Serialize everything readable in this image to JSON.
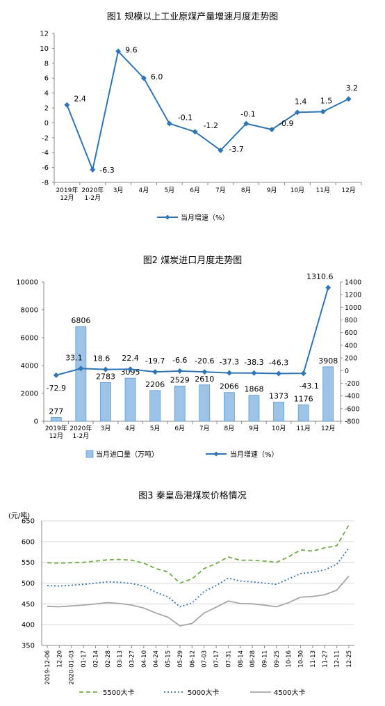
{
  "chart_data": [
    {
      "type": "line",
      "title": "图1  规模以上工业原煤产量增速月度走势图",
      "categories": [
        "2019年\n12月",
        "2020年\n1-2月",
        "3月",
        "4月",
        "5月",
        "6月",
        "7月",
        "8月",
        "9月",
        "10月",
        "11月",
        "12月"
      ],
      "series": [
        {
          "name": "当月增速（%）",
          "values": [
            2.4,
            -6.3,
            9.6,
            6.0,
            -0.1,
            -1.2,
            -3.7,
            -0.1,
            -0.9,
            1.4,
            1.5,
            3.2
          ],
          "labels": [
            "2.4",
            "-6.3",
            "9.6",
            "6.0",
            "-0.1",
            "-1.2",
            "-3.7",
            "-0.1",
            "-0.9",
            "1.4",
            "1.5",
            "3.2"
          ],
          "color": "#2e75b6"
        }
      ],
      "ylim": [
        -8,
        12
      ],
      "yticks": [
        "12",
        "10",
        "8",
        "6",
        "4",
        "2",
        "0",
        "-2",
        "-4",
        "-6",
        "-8"
      ],
      "legend_position": "bottom"
    },
    {
      "type": "bar",
      "title": "图2  煤炭进口月度走势图",
      "categories": [
        "2019年\n12月",
        "2020年\n1-2月",
        "3月",
        "4月",
        "5月",
        "6月",
        "7月",
        "8月",
        "9月",
        "10月",
        "11月",
        "12月"
      ],
      "series": [
        {
          "name": "当月进口量（万吨）",
          "type": "bar",
          "axis": "left",
          "values": [
            277,
            6806,
            2783,
            3095,
            2206,
            2529,
            2610,
            2066,
            1868,
            1373,
            1176,
            3908
          ],
          "labels": [
            "277",
            "6806",
            "2783",
            "3095",
            "2206",
            "2529",
            "2610",
            "2066",
            "1868",
            "1373",
            "1176",
            "3908"
          ],
          "color": "#9dc3e6"
        },
        {
          "name": "当月增速（%）",
          "type": "line",
          "axis": "right",
          "values": [
            -72.9,
            33.1,
            18.6,
            22.4,
            -19.7,
            -6.6,
            -20.6,
            -37.3,
            -38.3,
            -46.3,
            -43.1,
            1310.6
          ],
          "labels": [
            "-72.9",
            "33.1",
            "18.6",
            "22.4",
            "-19.7",
            "-6.6",
            "-20.6",
            "-37.3",
            "-38.3",
            "-46.3",
            "-43.1",
            "1310.6"
          ],
          "color": "#2e75b6"
        }
      ],
      "ylim": [
        0,
        10000
      ],
      "y2lim": [
        -800,
        1400
      ],
      "yticks": [
        "10000",
        "8000",
        "6000",
        "4000",
        "2000",
        "0"
      ],
      "y2ticks": [
        "1400",
        "1200",
        "1000",
        "800",
        "600",
        "400",
        "200",
        "0",
        "-200",
        "-400",
        "-600",
        "-800"
      ],
      "legend_position": "bottom"
    },
    {
      "type": "line",
      "title": "图3  秦皇岛港煤炭价格情况",
      "ylabel": "(元/吨)",
      "categories": [
        "2019-12-06",
        "12-20",
        "2020-01-03",
        "01-17",
        "02-14",
        "02-28",
        "03-13",
        "03-27",
        "04-10",
        "04-24",
        "05-15",
        "05-29",
        "06-12",
        "07-03",
        "07-17",
        "07-31",
        "08-14",
        "08-28",
        "09-11",
        "09-25",
        "10-16",
        "10-30",
        "11-13",
        "11-27",
        "12-11",
        "12-25"
      ],
      "series": [
        {
          "name": "5500大卡",
          "values": [
            549,
            548,
            549,
            550,
            553,
            556,
            557,
            555,
            548,
            535,
            527,
            500,
            510,
            535,
            547,
            563,
            555,
            555,
            553,
            550,
            563,
            580,
            577,
            585,
            590,
            640
          ],
          "color": "#70ad47",
          "style": "dashed"
        },
        {
          "name": "5000大卡",
          "values": [
            494,
            493,
            495,
            497,
            500,
            503,
            502,
            499,
            493,
            478,
            467,
            443,
            452,
            480,
            494,
            512,
            505,
            503,
            500,
            497,
            510,
            523,
            526,
            532,
            545,
            585
          ],
          "color": "#2e75b6",
          "style": "dotted"
        },
        {
          "name": "4500大卡",
          "values": [
            444,
            443,
            445,
            447,
            450,
            453,
            451,
            447,
            440,
            428,
            418,
            397,
            403,
            428,
            442,
            457,
            451,
            450,
            447,
            443,
            453,
            466,
            468,
            472,
            483,
            517
          ],
          "color": "#a6a6a6",
          "style": "solid"
        }
      ],
      "ylim": [
        350,
        650
      ],
      "yticks": [
        "650",
        "600",
        "550",
        "500",
        "450",
        "400",
        "350"
      ],
      "grid": true,
      "legend_position": "bottom"
    }
  ]
}
